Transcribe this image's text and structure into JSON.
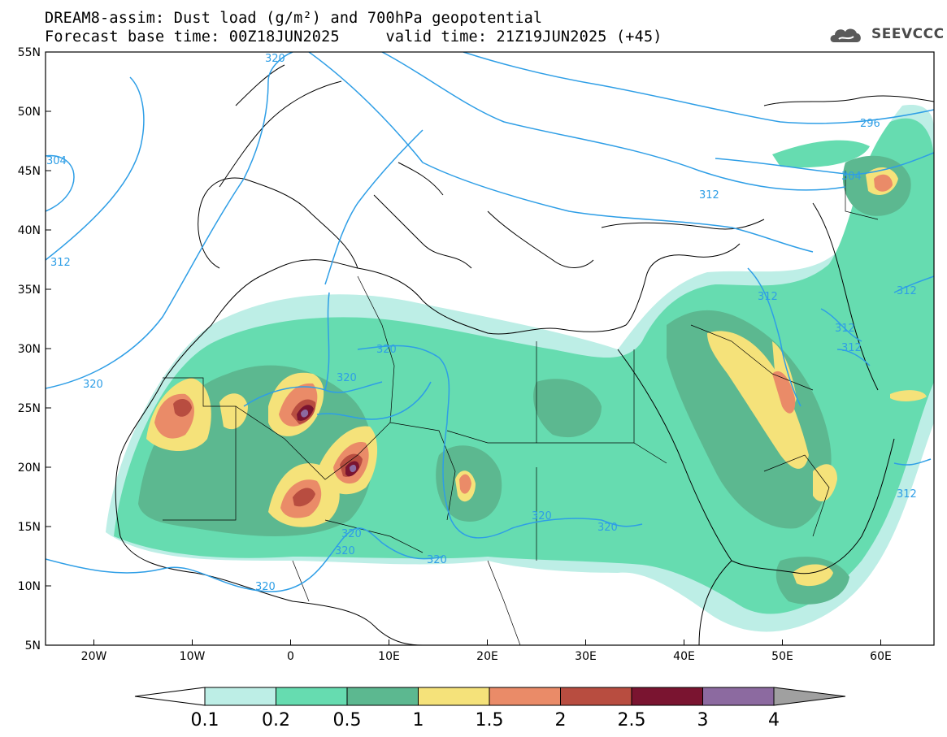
{
  "title": {
    "line1": "DREAM8-assim: Dust load (g/m²) and 700hPa geopotential",
    "line2": "Forecast base time: 00Z18JUN2025     valid time: 21Z19JUN2025 (+45)"
  },
  "logo": {
    "text": "SEEVCCC",
    "icon": "cloud-logo-icon"
  },
  "axes": {
    "lat_labels": [
      "55N",
      "50N",
      "45N",
      "40N",
      "35N",
      "30N",
      "25N",
      "20N",
      "15N",
      "10N",
      "5N"
    ],
    "lon_labels": [
      "20W",
      "10W",
      "0",
      "10E",
      "20E",
      "30E",
      "40E",
      "50E",
      "60E"
    ]
  },
  "contour_labels": [
    "320",
    "304",
    "312",
    "320",
    "320",
    "320",
    "320",
    "320",
    "320",
    "320",
    "320",
    "320",
    "296",
    "312",
    "304",
    "312",
    "312",
    "312",
    "312",
    "312"
  ],
  "colorbar": {
    "ticks": [
      "0.1",
      "0.2",
      "0.5",
      "1",
      "1.5",
      "2",
      "2.5",
      "3",
      "4"
    ],
    "colors": [
      "#bdeee6",
      "#66dcb0",
      "#5cb890",
      "#f5e27a",
      "#ea8b68",
      "#b84d40",
      "#7a1430",
      "#8c6aa0"
    ],
    "under_color": "#ffffff",
    "over_color": "#a0a0a0"
  },
  "map_colors": {
    "c01": "#bdeee6",
    "c02": "#66dcb0",
    "c05": "#5cb890",
    "c1": "#f5e27a",
    "c15": "#ea8b68",
    "c2": "#b84d40",
    "c25": "#7a1430",
    "c3": "#8c6aa0",
    "geopotential": "#2e9ee6",
    "coast": "#000000"
  }
}
